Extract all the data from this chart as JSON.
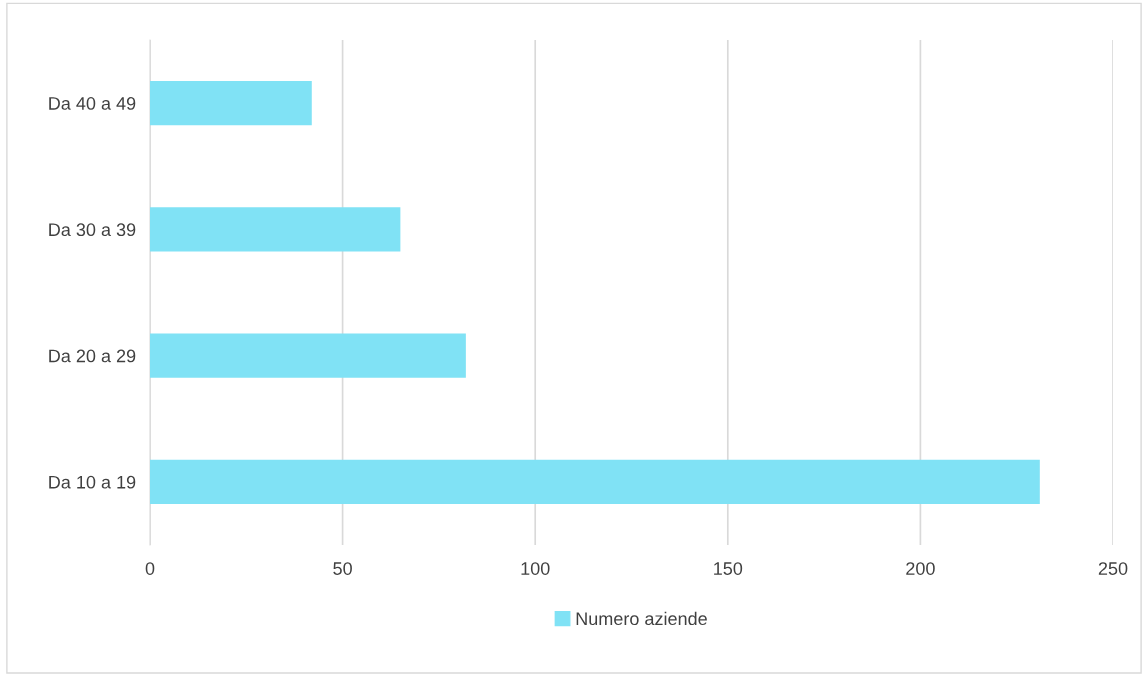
{
  "chart_data": {
    "type": "bar",
    "orientation": "horizontal",
    "categories": [
      "Da 40 a 49",
      "Da 30 a 39",
      "Da 20 a 29",
      "Da 10 a 19"
    ],
    "series": [
      {
        "name": "Numero aziende",
        "color": "#80e2f5",
        "values": [
          42,
          65,
          82,
          231
        ]
      }
    ],
    "xlim": [
      0,
      250
    ],
    "xticks": [
      0,
      50,
      100,
      150,
      200,
      250
    ],
    "grid": "x",
    "legend": "bottom"
  }
}
